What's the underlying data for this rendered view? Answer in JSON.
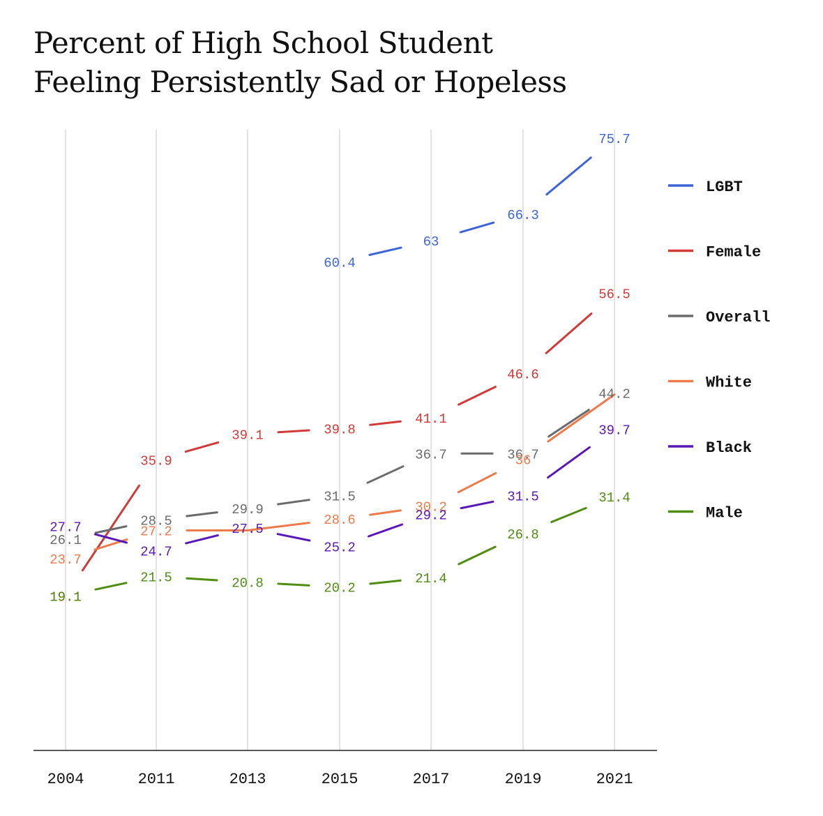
{
  "chart_data": {
    "type": "line",
    "title": "Percent of High School Student Feeling Persistently Sad or Hopeless",
    "categories": [
      "2004",
      "2011",
      "2013",
      "2015",
      "2017",
      "2019",
      "2021"
    ],
    "ylim": [
      0,
      80
    ],
    "grid": "vertical",
    "legend_position": "right",
    "series": [
      {
        "name": "LGBT",
        "color": "#3d63d8",
        "values": [
          null,
          null,
          null,
          60.4,
          63,
          66.3,
          75.7
        ],
        "labels": [
          "",
          "",
          "",
          "60.4",
          "63",
          "66.3",
          "75.7"
        ]
      },
      {
        "name": "Female",
        "color": "#d03a38",
        "values": [
          19.1,
          35.9,
          39.1,
          39.8,
          41.1,
          46.6,
          56.5
        ],
        "labels": [
          "19.1",
          "35.9",
          "39.1",
          "39.8",
          "41.1",
          "46.6",
          "56.5"
        ]
      },
      {
        "name": "Overall",
        "color": "#6b6b6b",
        "values": [
          26.1,
          28.5,
          29.9,
          31.5,
          36.7,
          36.7,
          44.2
        ],
        "labels": [
          "26.1",
          "28.5",
          "29.9",
          "31.5",
          "36.7",
          "36.7",
          "44.2"
        ]
      },
      {
        "name": "White",
        "color": "#ec7a4a",
        "values": [
          23.7,
          27.2,
          27.2,
          28.6,
          30.2,
          36,
          44
        ],
        "labels": [
          "23.7",
          "27.2",
          "",
          "28.6",
          "30.2",
          "36",
          ""
        ]
      },
      {
        "name": "Black",
        "color": "#5a17b8",
        "values": [
          27.7,
          24.7,
          27.5,
          25.2,
          29.2,
          31.5,
          39.7
        ],
        "labels": [
          "27.7",
          "24.7",
          "27.5",
          "25.2",
          "29.2",
          "31.5",
          "39.7"
        ]
      },
      {
        "name": "Male",
        "color": "#4f8c12",
        "values": [
          19.1,
          21.5,
          20.8,
          20.2,
          21.4,
          26.8,
          31.4
        ],
        "labels": [
          "19.1",
          "21.5",
          "20.8",
          "20.2",
          "21.4",
          "26.8",
          "31.4"
        ]
      }
    ]
  }
}
